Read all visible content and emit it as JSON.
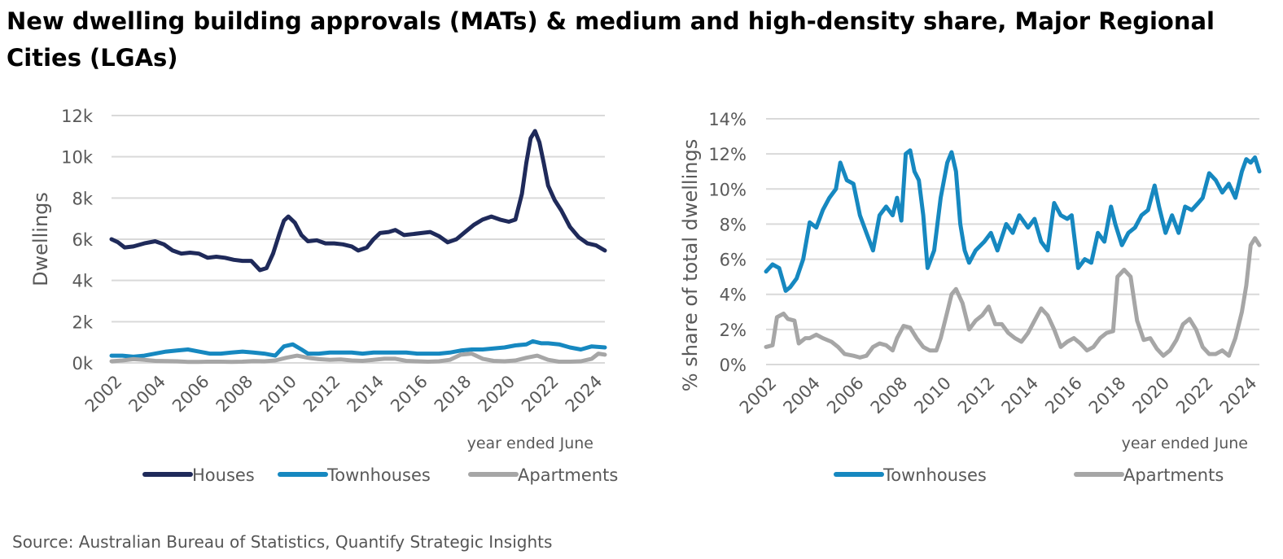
{
  "title": "New dwelling building approvals (MATs) & medium and high-density share, Major Regional Cities (LGAs)",
  "source": "Source: Australian Bureau of Statistics, Quantify Strategic Insights",
  "colors": {
    "houses": "#1f2a5a",
    "townhouses": "#1688c0",
    "apartments": "#a6a6a6",
    "grid": "#d9d9d9",
    "text": "#595959"
  },
  "chart_data": [
    {
      "type": "line",
      "title": "",
      "xlabel": "year ended June",
      "ylabel": "Dwellings",
      "xlim": [
        2002,
        2024.6
      ],
      "ylim": [
        0,
        12000
      ],
      "yticks": [
        0,
        2000,
        4000,
        6000,
        8000,
        10000,
        12000
      ],
      "ytick_labels": [
        "0k",
        "2k",
        "4k",
        "6k",
        "8k",
        "10k",
        "12k"
      ],
      "xticks": [
        2002,
        2004,
        2006,
        2008,
        2010,
        2012,
        2014,
        2016,
        2018,
        2020,
        2022,
        2024
      ],
      "xtick_labels": [
        "2002",
        "2004",
        "2006",
        "2008",
        "2010",
        "2012",
        "2014",
        "2016",
        "2018",
        "2020",
        "2022",
        "2024"
      ],
      "grid": true,
      "legend": "bottom",
      "series": [
        {
          "name": "Houses",
          "color": "#1f2a5a",
          "x": [
            2002,
            2002.3,
            2002.6,
            2003,
            2003.5,
            2004,
            2004.4,
            2004.8,
            2005.2,
            2005.6,
            2006,
            2006.4,
            2006.8,
            2007.2,
            2007.6,
            2008,
            2008.4,
            2008.8,
            2009.1,
            2009.4,
            2009.7,
            2009.9,
            2010.1,
            2010.4,
            2010.7,
            2011,
            2011.4,
            2011.8,
            2012.2,
            2012.6,
            2013,
            2013.3,
            2013.7,
            2014,
            2014.3,
            2014.7,
            2015,
            2015.4,
            2015.8,
            2016.2,
            2016.6,
            2017,
            2017.4,
            2017.8,
            2018.2,
            2018.6,
            2019,
            2019.4,
            2019.8,
            2020.2,
            2020.5,
            2020.8,
            2021,
            2021.2,
            2021.4,
            2021.6,
            2021.8,
            2022,
            2022.3,
            2022.6,
            2023,
            2023.4,
            2023.8,
            2024.2,
            2024.6
          ],
          "values": [
            6000,
            5850,
            5600,
            5650,
            5800,
            5900,
            5750,
            5450,
            5300,
            5350,
            5300,
            5100,
            5150,
            5100,
            5000,
            4950,
            4950,
            4500,
            4600,
            5300,
            6300,
            6900,
            7100,
            6800,
            6200,
            5900,
            5950,
            5800,
            5800,
            5750,
            5650,
            5450,
            5600,
            6000,
            6300,
            6350,
            6450,
            6200,
            6250,
            6300,
            6350,
            6150,
            5850,
            6000,
            6350,
            6700,
            6950,
            7100,
            6950,
            6850,
            6950,
            8200,
            9700,
            10900,
            11250,
            10700,
            9700,
            8600,
            7900,
            7400,
            6600,
            6100,
            5800,
            5700,
            5450
          ]
        },
        {
          "name": "Townhouses",
          "color": "#1688c0",
          "x": [
            2002,
            2002.5,
            2003,
            2003.5,
            2004,
            2004.5,
            2005,
            2005.5,
            2006,
            2006.5,
            2007,
            2007.5,
            2008,
            2008.5,
            2009,
            2009.5,
            2009.9,
            2010.3,
            2010.7,
            2011,
            2011.5,
            2012,
            2012.5,
            2013,
            2013.5,
            2014,
            2014.5,
            2015,
            2015.5,
            2016,
            2016.5,
            2017,
            2017.5,
            2018,
            2018.5,
            2019,
            2019.5,
            2020,
            2020.5,
            2021,
            2021.3,
            2021.7,
            2022,
            2022.5,
            2023,
            2023.5,
            2024,
            2024.6
          ],
          "values": [
            350,
            350,
            300,
            350,
            450,
            550,
            600,
            650,
            550,
            450,
            450,
            500,
            550,
            500,
            450,
            350,
            800,
            900,
            650,
            450,
            450,
            500,
            500,
            500,
            450,
            500,
            500,
            500,
            500,
            450,
            450,
            450,
            500,
            600,
            650,
            650,
            700,
            750,
            850,
            900,
            1050,
            950,
            950,
            900,
            750,
            650,
            800,
            750
          ]
        },
        {
          "name": "Apartments",
          "color": "#a6a6a6",
          "x": [
            2002,
            2002.5,
            2003,
            2003.5,
            2004,
            2004.5,
            2005,
            2005.5,
            2006,
            2006.5,
            2007,
            2007.5,
            2008,
            2008.5,
            2009,
            2009.5,
            2010,
            2010.5,
            2011,
            2011.5,
            2012,
            2012.5,
            2013,
            2013.5,
            2014,
            2014.5,
            2015,
            2015.5,
            2016,
            2016.5,
            2017,
            2017.5,
            2018,
            2018.5,
            2019,
            2019.5,
            2020,
            2020.5,
            2021,
            2021.5,
            2022,
            2022.5,
            2023,
            2023.5,
            2024,
            2024.3,
            2024.6
          ],
          "values": [
            80,
            120,
            180,
            150,
            100,
            90,
            80,
            50,
            50,
            60,
            60,
            50,
            60,
            90,
            80,
            120,
            250,
            350,
            250,
            180,
            150,
            170,
            120,
            100,
            150,
            200,
            200,
            100,
            80,
            60,
            80,
            150,
            400,
            450,
            200,
            100,
            80,
            120,
            250,
            350,
            150,
            60,
            60,
            80,
            200,
            450,
            400
          ]
        }
      ]
    },
    {
      "type": "line",
      "title": "",
      "xlabel": "year ended June",
      "ylabel": "% share of total dwellings",
      "xlim": [
        2002,
        2024.6
      ],
      "ylim": [
        0,
        14
      ],
      "yticks": [
        0,
        2,
        4,
        6,
        8,
        10,
        12,
        14
      ],
      "ytick_labels": [
        "0%",
        "2%",
        "4%",
        "6%",
        "8%",
        "10%",
        "12%",
        "14%"
      ],
      "xticks": [
        2002,
        2004,
        2006,
        2008,
        2010,
        2012,
        2014,
        2016,
        2018,
        2020,
        2022,
        2024
      ],
      "xtick_labels": [
        "2002",
        "2004",
        "2006",
        "2008",
        "2010",
        "2012",
        "2014",
        "2016",
        "2018",
        "2020",
        "2022",
        "2024"
      ],
      "grid": true,
      "legend": "bottom",
      "series": [
        {
          "name": "Townhouses",
          "color": "#1688c0",
          "x": [
            2002,
            2002.3,
            2002.6,
            2002.9,
            2003.1,
            2003.4,
            2003.7,
            2004,
            2004.3,
            2004.6,
            2004.9,
            2005.2,
            2005.4,
            2005.7,
            2006,
            2006.3,
            2006.6,
            2006.9,
            2007.2,
            2007.5,
            2007.8,
            2008,
            2008.2,
            2008.4,
            2008.6,
            2008.8,
            2009,
            2009.2,
            2009.4,
            2009.7,
            2010,
            2010.3,
            2010.5,
            2010.7,
            2010.9,
            2011.1,
            2011.3,
            2011.6,
            2012,
            2012.3,
            2012.6,
            2013,
            2013.3,
            2013.6,
            2014,
            2014.3,
            2014.6,
            2014.9,
            2015.2,
            2015.5,
            2015.8,
            2016,
            2016.3,
            2016.6,
            2016.9,
            2017.2,
            2017.5,
            2017.8,
            2018,
            2018.3,
            2018.6,
            2018.9,
            2019.2,
            2019.5,
            2019.8,
            2020,
            2020.3,
            2020.6,
            2020.9,
            2021.2,
            2021.5,
            2021.8,
            2022,
            2022.3,
            2022.6,
            2022.9,
            2023.2,
            2023.5,
            2023.8,
            2024,
            2024.2,
            2024.4,
            2024.6
          ],
          "values": [
            5.3,
            5.7,
            5.5,
            4.2,
            4.4,
            4.9,
            6,
            8.1,
            7.8,
            8.8,
            9.5,
            10,
            11.5,
            10.5,
            10.3,
            8.5,
            7.5,
            6.5,
            8.5,
            9,
            8.5,
            9.5,
            8.2,
            12,
            12.2,
            11,
            10.5,
            8.5,
            5.5,
            6.5,
            9.5,
            11.5,
            12.1,
            11,
            8,
            6.5,
            5.8,
            6.5,
            7,
            7.5,
            6.5,
            8,
            7.5,
            8.5,
            7.8,
            8.3,
            7,
            6.5,
            9.2,
            8.5,
            8.3,
            8.5,
            5.5,
            6,
            5.8,
            7.5,
            7,
            9,
            8,
            6.8,
            7.5,
            7.8,
            8.5,
            8.8,
            10.2,
            9,
            7.5,
            8.5,
            7.5,
            9,
            8.8,
            9.2,
            9.5,
            10.9,
            10.5,
            9.8,
            10.3,
            9.5,
            11,
            11.7,
            11.5,
            11.8,
            11
          ]
        },
        {
          "name": "Apartments",
          "color": "#a6a6a6",
          "x": [
            2002,
            2002.3,
            2002.5,
            2002.8,
            2003,
            2003.3,
            2003.5,
            2003.8,
            2004,
            2004.3,
            2004.6,
            2005,
            2005.3,
            2005.6,
            2006,
            2006.3,
            2006.6,
            2006.9,
            2007.2,
            2007.5,
            2007.8,
            2008,
            2008.3,
            2008.6,
            2008.9,
            2009.2,
            2009.5,
            2009.8,
            2010,
            2010.3,
            2010.5,
            2010.7,
            2011,
            2011.3,
            2011.6,
            2011.9,
            2012.2,
            2012.5,
            2012.8,
            2013.1,
            2013.4,
            2013.7,
            2014,
            2014.3,
            2014.6,
            2014.9,
            2015.2,
            2015.5,
            2015.8,
            2016.1,
            2016.4,
            2016.7,
            2017,
            2017.3,
            2017.6,
            2017.9,
            2018.1,
            2018.4,
            2018.7,
            2019,
            2019.3,
            2019.6,
            2019.9,
            2020.2,
            2020.5,
            2020.8,
            2021.1,
            2021.4,
            2021.7,
            2022,
            2022.3,
            2022.6,
            2022.9,
            2023.2,
            2023.5,
            2023.8,
            2024,
            2024.2,
            2024.4,
            2024.6
          ],
          "values": [
            1,
            1.1,
            2.7,
            2.9,
            2.6,
            2.5,
            1.2,
            1.5,
            1.5,
            1.7,
            1.5,
            1.3,
            1,
            0.6,
            0.5,
            0.4,
            0.5,
            1,
            1.2,
            1.1,
            0.8,
            1.5,
            2.2,
            2.1,
            1.5,
            1,
            0.8,
            0.8,
            1.5,
            3,
            4,
            4.3,
            3.5,
            2,
            2.5,
            2.8,
            3.3,
            2.3,
            2.3,
            1.8,
            1.5,
            1.3,
            1.8,
            2.5,
            3.2,
            2.8,
            2,
            1,
            1.3,
            1.5,
            1.2,
            0.8,
            1,
            1.5,
            1.8,
            1.9,
            5,
            5.4,
            5,
            2.5,
            1.4,
            1.5,
            0.9,
            0.5,
            0.8,
            1.4,
            2.3,
            2.6,
            2,
            1,
            0.6,
            0.6,
            0.8,
            0.5,
            1.5,
            3,
            4.5,
            6.8,
            7.2,
            6.8
          ]
        }
      ]
    }
  ]
}
